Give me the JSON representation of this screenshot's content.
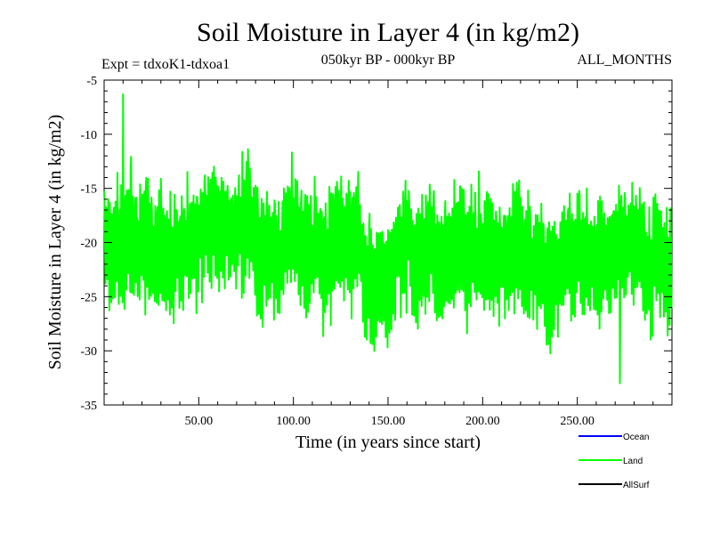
{
  "chart_data": {
    "type": "line",
    "title": "Soil Moisture in Layer 4 (in kg/m2)",
    "subtitle_left": "Expt = tdxoK1-tdxoa1",
    "subtitle_center": "050kyr BP - 000kyr BP",
    "subtitle_right": "ALL_MONTHS",
    "xlabel": "Time (in years since start)",
    "ylabel": "Soil Moisture in Layer 4 (in kg/m2)",
    "xlim": [
      0,
      300
    ],
    "ylim": [
      -35,
      -5
    ],
    "x_tick_labels": [
      "50.00",
      "100.00",
      "150.00",
      "200.00",
      "250.00"
    ],
    "x_tick_values": [
      50,
      100,
      150,
      200,
      250
    ],
    "y_tick_labels": [
      "-5",
      "-10",
      "-15",
      "-20",
      "-25",
      "-30",
      "-35"
    ],
    "y_tick_values": [
      -5,
      -10,
      -15,
      -20,
      -25,
      -30,
      -35
    ],
    "grid": false,
    "legend_position": "bottom-right",
    "series": [
      {
        "name": "Ocean",
        "legend_label": "Ocean",
        "color": "#0000ff",
        "values": []
      },
      {
        "name": "Land",
        "legend_label": "Land",
        "color": "#00ff00",
        "x_start": 0,
        "x_step": 0.25,
        "count": 1200,
        "mean": -19.8,
        "min": -33.0,
        "max": -6.3
      },
      {
        "name": "AllSurf",
        "legend_label": "AllSurf",
        "color": "#000000",
        "values": []
      }
    ]
  }
}
